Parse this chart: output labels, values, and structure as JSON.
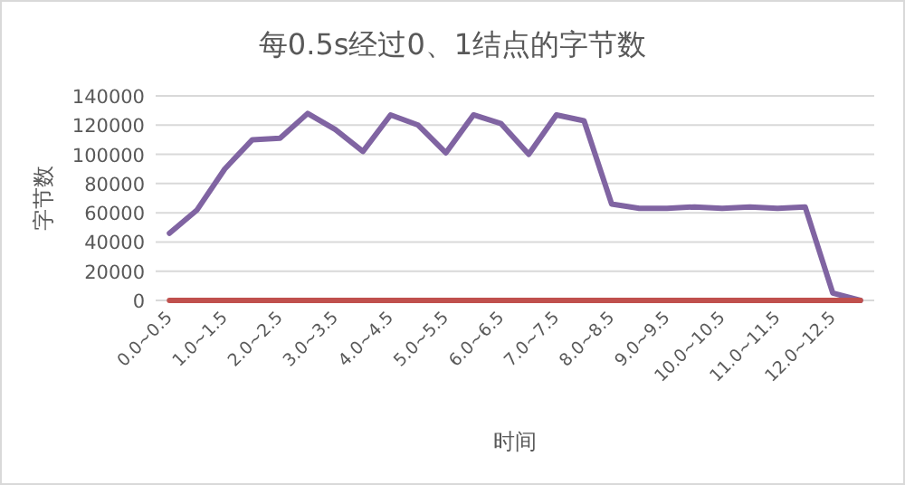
{
  "chart_data": {
    "type": "line",
    "title": "每0.5s经过0、1结点的字节数",
    "xlabel": "时间",
    "ylabel": "字节数",
    "categories": [
      "0.0~0.5",
      null,
      "1.0~1.5",
      null,
      "2.0~2.5",
      null,
      "3.0~3.5",
      null,
      "4.0~4.5",
      null,
      "5.0~5.5",
      null,
      "6.0~6.5",
      null,
      "7.0~7.5",
      null,
      "8.0~8.5",
      null,
      "9.0~9.5",
      null,
      "10.0~10.5",
      null,
      "11.0~11.5",
      null,
      "12.0~12.5",
      null
    ],
    "series": [
      {
        "color": "#8064a2",
        "values": [
          46000,
          62000,
          90000,
          110000,
          111000,
          128000,
          117000,
          102000,
          127000,
          120000,
          101000,
          127000,
          121000,
          100000,
          127000,
          123000,
          66000,
          63000,
          63000,
          64000,
          63000,
          64000,
          63000,
          64000,
          5000,
          0
        ]
      },
      {
        "color": "#c0504d",
        "values": [
          0,
          0,
          0,
          0,
          0,
          0,
          0,
          0,
          0,
          0,
          0,
          0,
          0,
          0,
          0,
          0,
          0,
          0,
          0,
          0,
          0,
          0,
          0,
          0,
          0,
          0
        ]
      }
    ],
    "ylim": [
      0,
      140000
    ],
    "yticks": [
      0,
      20000,
      40000,
      60000,
      80000,
      100000,
      120000,
      140000
    ],
    "grid": "y",
    "marker": "none",
    "line_style": "solid"
  }
}
